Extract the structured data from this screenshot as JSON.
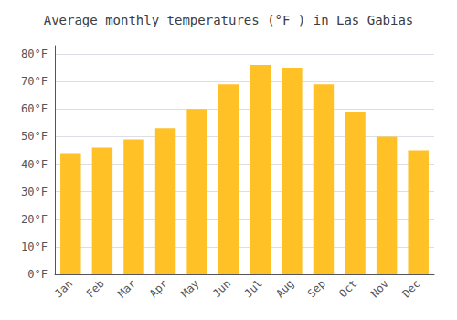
{
  "chart_data": {
    "type": "bar",
    "title": "Average monthly temperatures (°F ) in Las Gabias",
    "categories": [
      "Jan",
      "Feb",
      "Mar",
      "Apr",
      "May",
      "Jun",
      "Jul",
      "Aug",
      "Sep",
      "Oct",
      "Nov",
      "Dec"
    ],
    "values": [
      44,
      46,
      49,
      53,
      60,
      69,
      76,
      75,
      69,
      59,
      50,
      45
    ],
    "color": "#FFC125",
    "ylim": [
      0,
      83
    ],
    "yticks": [
      {
        "value": 0,
        "label": "0°F"
      },
      {
        "value": 10,
        "label": "10°F"
      },
      {
        "value": 20,
        "label": "20°F"
      },
      {
        "value": 30,
        "label": "30°F"
      },
      {
        "value": 40,
        "label": "40°F"
      },
      {
        "value": 50,
        "label": "50°F"
      },
      {
        "value": 60,
        "label": "60°F"
      },
      {
        "value": 70,
        "label": "70°F"
      },
      {
        "value": 80,
        "label": "80°F"
      }
    ],
    "grid": true
  }
}
